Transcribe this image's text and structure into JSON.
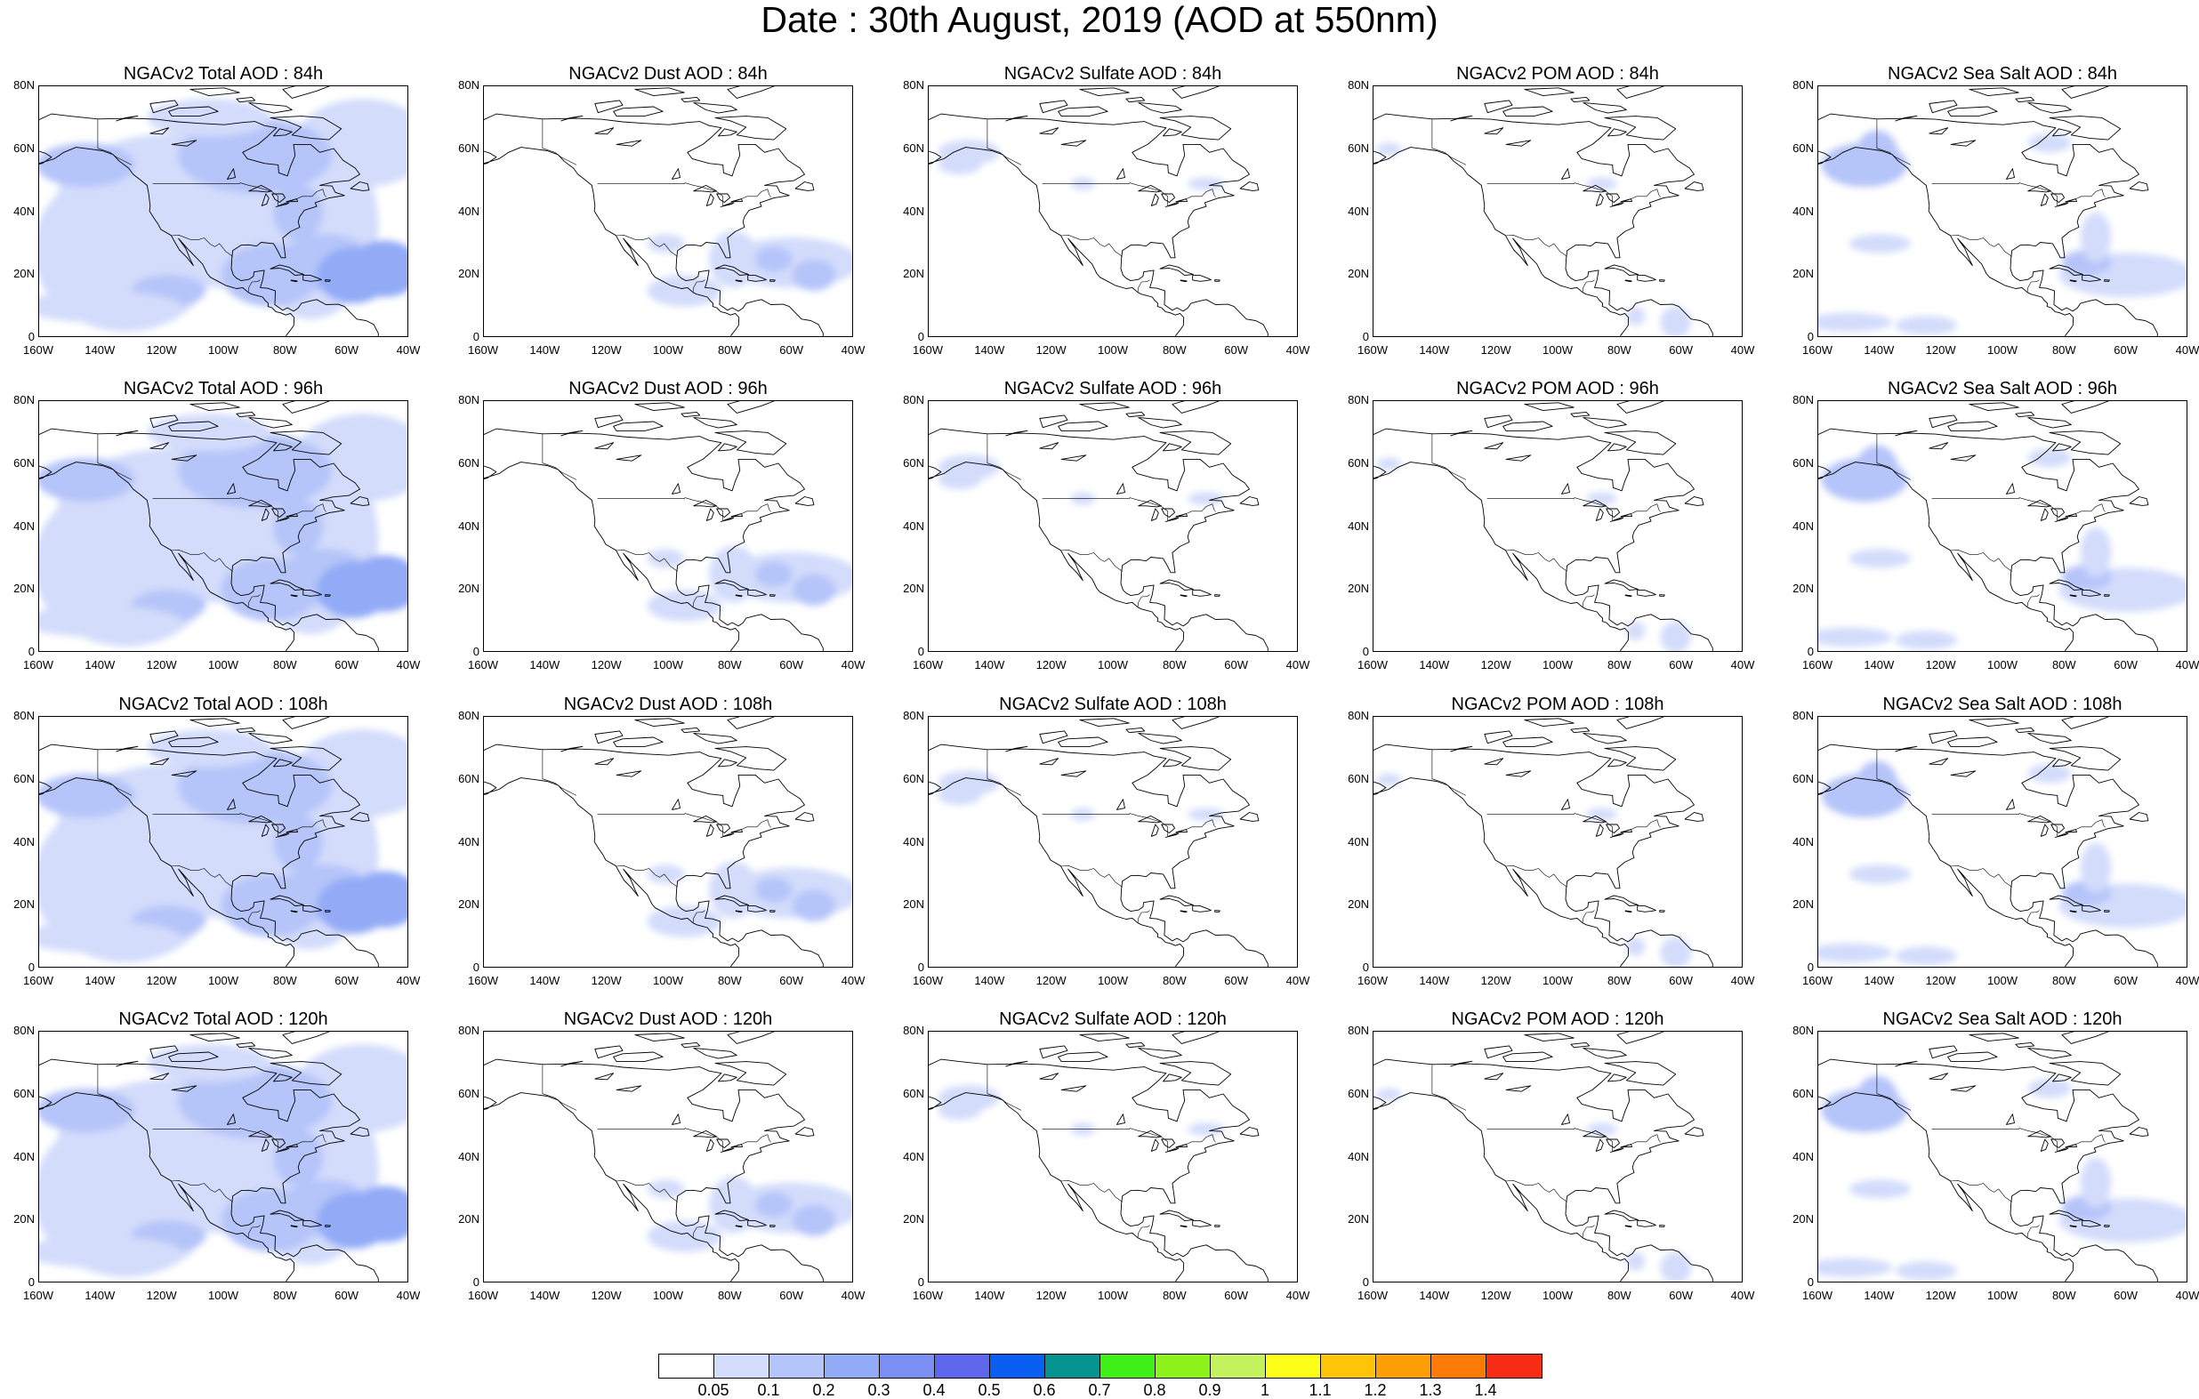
{
  "title": "Date : 30th August, 2019 (AOD at 550nm)",
  "axis": {
    "y_ticks": [
      "80N",
      "60N",
      "40N",
      "20N",
      "0"
    ],
    "x_ticks": [
      "160W",
      "140W",
      "120W",
      "100W",
      "80W",
      "60W",
      "40W"
    ]
  },
  "panels": [
    {
      "title": "NGACv2 Total AOD : 84h",
      "species": "total",
      "hour": 84
    },
    {
      "title": "NGACv2 Dust AOD : 84h",
      "species": "dust",
      "hour": 84
    },
    {
      "title": "NGACv2 Sulfate AOD : 84h",
      "species": "sulfate",
      "hour": 84
    },
    {
      "title": "NGACv2 POM AOD : 84h",
      "species": "pom",
      "hour": 84
    },
    {
      "title": "NGACv2 Sea Salt AOD : 84h",
      "species": "seasalt",
      "hour": 84
    },
    {
      "title": "NGACv2 Total AOD : 96h",
      "species": "total",
      "hour": 96
    },
    {
      "title": "NGACv2 Dust AOD : 96h",
      "species": "dust",
      "hour": 96
    },
    {
      "title": "NGACv2 Sulfate AOD : 96h",
      "species": "sulfate",
      "hour": 96
    },
    {
      "title": "NGACv2 POM AOD : 96h",
      "species": "pom",
      "hour": 96
    },
    {
      "title": "NGACv2 Sea Salt AOD : 96h",
      "species": "seasalt",
      "hour": 96
    },
    {
      "title": "NGACv2 Total AOD : 108h",
      "species": "total",
      "hour": 108
    },
    {
      "title": "NGACv2 Dust AOD : 108h",
      "species": "dust",
      "hour": 108
    },
    {
      "title": "NGACv2 Sulfate AOD : 108h",
      "species": "sulfate",
      "hour": 108
    },
    {
      "title": "NGACv2 POM AOD : 108h",
      "species": "pom",
      "hour": 108
    },
    {
      "title": "NGACv2 Sea Salt AOD : 108h",
      "species": "seasalt",
      "hour": 108
    },
    {
      "title": "NGACv2 Total AOD : 120h",
      "species": "total",
      "hour": 120
    },
    {
      "title": "NGACv2 Dust AOD : 120h",
      "species": "dust",
      "hour": 120
    },
    {
      "title": "NGACv2 Sulfate AOD : 120h",
      "species": "sulfate",
      "hour": 120
    },
    {
      "title": "NGACv2 POM AOD : 120h",
      "species": "pom",
      "hour": 120
    },
    {
      "title": "NGACv2 Sea Salt  AOD : 120h",
      "species": "seasalt",
      "hour": 120
    }
  ],
  "colorbar": {
    "colors": [
      "#ffffff",
      "#d3dcfb",
      "#b5c4f9",
      "#93abf7",
      "#7b8ff3",
      "#5e66ee",
      "#0a5ff2",
      "#06928e",
      "#40ee18",
      "#8bf31a",
      "#c4f25e",
      "#ffff1a",
      "#fdc408",
      "#fb9f05",
      "#fa7b06",
      "#f62c15"
    ],
    "labels": [
      "0.05",
      "0.1",
      "0.2",
      "0.3",
      "0.4",
      "0.5",
      "0.6",
      "0.7",
      "0.8",
      "0.9",
      "1",
      "1.1",
      "1.2",
      "1.3",
      "1.4"
    ]
  }
}
